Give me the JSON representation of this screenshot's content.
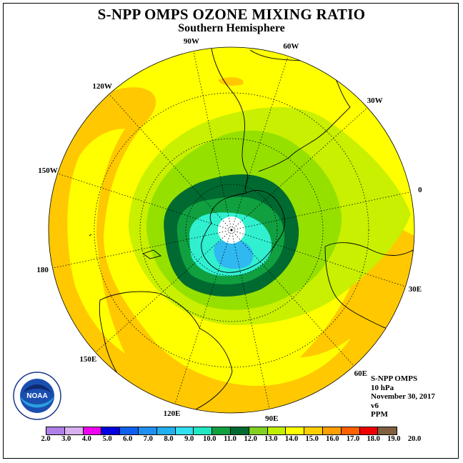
{
  "title": "S-NPP OMPS OZONE MIXING RATIO",
  "subtitle": "Southern Hemisphere",
  "longitude_labels": [
    {
      "label": "90W",
      "lon": -90
    },
    {
      "label": "60W",
      "lon": -60
    },
    {
      "label": "30W",
      "lon": -30
    },
    {
      "label": "0",
      "lon": 0
    },
    {
      "label": "30E",
      "lon": 30
    },
    {
      "label": "60E",
      "lon": 60
    },
    {
      "label": "90E",
      "lon": 90
    },
    {
      "label": "120E",
      "lon": 120
    },
    {
      "label": "150E",
      "lon": 150
    },
    {
      "label": "180",
      "lon": 180
    },
    {
      "label": "150W",
      "lon": -150
    },
    {
      "label": "120W",
      "lon": -120
    }
  ],
  "info": {
    "instrument": "S-NPP OMPS",
    "level": "10 hPa",
    "date": "November 30, 2017",
    "version": "v6",
    "units": "PPM"
  },
  "logo_text": "NOAA",
  "colorbar": {
    "labels": [
      "2.0",
      "3.0",
      "4.0",
      "5.0",
      "6.0",
      "7.0",
      "8.0",
      "9.0",
      "10.0",
      "11.0",
      "12.0",
      "13.0",
      "14.0",
      "15.0",
      "16.0",
      "17.0",
      "18.0",
      "19.0",
      "20.0"
    ],
    "colors": [
      "#b080e8",
      "#d8b0f0",
      "#f000f0",
      "#0000e0",
      "#1060f0",
      "#2090f0",
      "#20b0f0",
      "#30e0f0",
      "#20e8c0",
      "#10a040",
      "#006a30",
      "#80d020",
      "#c0f000",
      "#ffff00",
      "#ffd000",
      "#ffa000",
      "#ff6000",
      "#f00000",
      "#806040"
    ]
  },
  "colors": {
    "yellow": "#ffff00",
    "orange": "#ffc800",
    "lime": "#c8f000",
    "green": "#96e000",
    "mid_green": "#10a040",
    "dark_green": "#006a30",
    "cyan": "#30f0d0",
    "blue": "#30b8f0"
  }
}
